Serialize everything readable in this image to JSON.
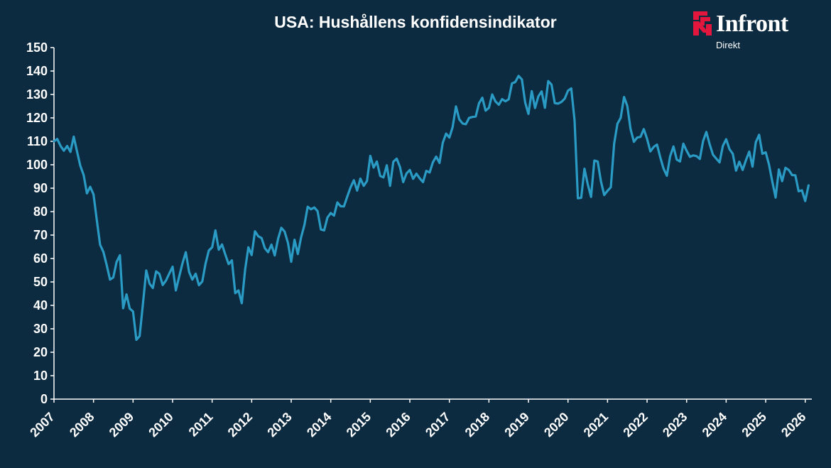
{
  "colors": {
    "background": "#0d2b40",
    "line": "#2a9bc4",
    "axis": "#ffffff",
    "brand": "#e3173e"
  },
  "logo": {
    "name": "Infront",
    "subtitle": "Direkt",
    "mark": "infront-mark-icon"
  },
  "chart_data": {
    "type": "line",
    "title": "USA: Hushållens konfidensindikator",
    "xlabel": "",
    "ylabel": "",
    "grid": false,
    "legend": "none",
    "ylim": [
      0,
      150
    ],
    "xlim": [
      "2007-01",
      "2026-03"
    ],
    "yticks": [
      "0",
      "10",
      "20",
      "30",
      "40",
      "50",
      "60",
      "70",
      "80",
      "90",
      "100",
      "110",
      "120",
      "130",
      "140",
      "150"
    ],
    "xticks": [
      "2007",
      "2008",
      "2009",
      "2010",
      "2011",
      "2012",
      "2013",
      "2014",
      "2015",
      "2016",
      "2017",
      "2018",
      "2019",
      "2020",
      "2021",
      "2022",
      "2023",
      "2024",
      "2025",
      "2026"
    ],
    "series": [
      {
        "points": [
          [
            "2007-01",
            110
          ],
          [
            "2007-02",
            111
          ],
          [
            "2007-03",
            108
          ],
          [
            "2007-04",
            106
          ],
          [
            "2007-05",
            108
          ],
          [
            "2007-06",
            105.5
          ],
          [
            "2007-07",
            112
          ],
          [
            "2007-08",
            105.6
          ],
          [
            "2007-09",
            99.5
          ],
          [
            "2007-10",
            95.6
          ],
          [
            "2007-11",
            87.8
          ],
          [
            "2007-12",
            90.6
          ],
          [
            "2008-01",
            87.3
          ],
          [
            "2008-02",
            76.4
          ],
          [
            "2008-03",
            65.9
          ],
          [
            "2008-04",
            62.8
          ],
          [
            "2008-05",
            57.2
          ],
          [
            "2008-06",
            51
          ],
          [
            "2008-07",
            51.9
          ],
          [
            "2008-08",
            58.5
          ],
          [
            "2008-09",
            61.4
          ],
          [
            "2008-10",
            38.8
          ],
          [
            "2008-11",
            44.7
          ],
          [
            "2008-12",
            38.6
          ],
          [
            "2009-01",
            37.4
          ],
          [
            "2009-02",
            25.3
          ],
          [
            "2009-03",
            26.9
          ],
          [
            "2009-04",
            40.8
          ],
          [
            "2009-05",
            54.9
          ],
          [
            "2009-06",
            49.3
          ],
          [
            "2009-07",
            47.4
          ],
          [
            "2009-08",
            54.5
          ],
          [
            "2009-09",
            53.4
          ],
          [
            "2009-10",
            48.7
          ],
          [
            "2009-11",
            50.6
          ],
          [
            "2009-12",
            53.6
          ],
          [
            "2010-01",
            56.5
          ],
          [
            "2010-02",
            46.4
          ],
          [
            "2010-03",
            52.3
          ],
          [
            "2010-04",
            57.9
          ],
          [
            "2010-05",
            62.7
          ],
          [
            "2010-06",
            54.3
          ],
          [
            "2010-07",
            51
          ],
          [
            "2010-08",
            53.5
          ],
          [
            "2010-09",
            48.6
          ],
          [
            "2010-10",
            50.2
          ],
          [
            "2010-11",
            57.8
          ],
          [
            "2010-12",
            63.4
          ],
          [
            "2011-01",
            64.8
          ],
          [
            "2011-02",
            72
          ],
          [
            "2011-03",
            63.8
          ],
          [
            "2011-04",
            66
          ],
          [
            "2011-05",
            61.7
          ],
          [
            "2011-06",
            57.6
          ],
          [
            "2011-07",
            59.2
          ],
          [
            "2011-08",
            45.2
          ],
          [
            "2011-09",
            46.4
          ],
          [
            "2011-10",
            40.9
          ],
          [
            "2011-11",
            55.2
          ],
          [
            "2011-12",
            64.8
          ],
          [
            "2012-01",
            61.5
          ],
          [
            "2012-02",
            71.6
          ],
          [
            "2012-03",
            69.5
          ],
          [
            "2012-04",
            68.7
          ],
          [
            "2012-05",
            64.4
          ],
          [
            "2012-06",
            62.7
          ],
          [
            "2012-07",
            65.9
          ],
          [
            "2012-08",
            61.3
          ],
          [
            "2012-09",
            68.4
          ],
          [
            "2012-10",
            73.1
          ],
          [
            "2012-11",
            71.5
          ],
          [
            "2012-12",
            66.7
          ],
          [
            "2013-01",
            58.6
          ],
          [
            "2013-02",
            68
          ],
          [
            "2013-03",
            61.9
          ],
          [
            "2013-04",
            69
          ],
          [
            "2013-05",
            74.3
          ],
          [
            "2013-06",
            82.1
          ],
          [
            "2013-07",
            81
          ],
          [
            "2013-08",
            81.8
          ],
          [
            "2013-09",
            80.2
          ],
          [
            "2013-10",
            72.4
          ],
          [
            "2013-11",
            72
          ],
          [
            "2013-12",
            77.5
          ],
          [
            "2014-01",
            79.4
          ],
          [
            "2014-02",
            78.3
          ],
          [
            "2014-03",
            83.9
          ],
          [
            "2014-04",
            82.3
          ],
          [
            "2014-05",
            82.2
          ],
          [
            "2014-06",
            86.4
          ],
          [
            "2014-07",
            90.3
          ],
          [
            "2014-08",
            93.4
          ],
          [
            "2014-09",
            89
          ],
          [
            "2014-10",
            94.1
          ],
          [
            "2014-11",
            91
          ],
          [
            "2014-12",
            93.1
          ],
          [
            "2015-01",
            103.8
          ],
          [
            "2015-02",
            98.8
          ],
          [
            "2015-03",
            101.4
          ],
          [
            "2015-04",
            95.2
          ],
          [
            "2015-05",
            94.6
          ],
          [
            "2015-06",
            99.8
          ],
          [
            "2015-07",
            91
          ],
          [
            "2015-08",
            101.3
          ],
          [
            "2015-09",
            102.6
          ],
          [
            "2015-10",
            99.1
          ],
          [
            "2015-11",
            92.6
          ],
          [
            "2015-12",
            96.3
          ],
          [
            "2016-01",
            97.8
          ],
          [
            "2016-02",
            94
          ],
          [
            "2016-03",
            96.2
          ],
          [
            "2016-04",
            94.2
          ],
          [
            "2016-05",
            92.6
          ],
          [
            "2016-06",
            97.4
          ],
          [
            "2016-07",
            96.7
          ],
          [
            "2016-08",
            101.1
          ],
          [
            "2016-09",
            103.5
          ],
          [
            "2016-10",
            100.8
          ],
          [
            "2016-11",
            109.4
          ],
          [
            "2016-12",
            113.3
          ],
          [
            "2017-01",
            111.6
          ],
          [
            "2017-02",
            116.1
          ],
          [
            "2017-03",
            124.9
          ],
          [
            "2017-04",
            119.4
          ],
          [
            "2017-05",
            117.6
          ],
          [
            "2017-06",
            117.3
          ],
          [
            "2017-07",
            120
          ],
          [
            "2017-08",
            120.4
          ],
          [
            "2017-09",
            120.6
          ],
          [
            "2017-10",
            126.2
          ],
          [
            "2017-11",
            128.6
          ],
          [
            "2017-12",
            123.1
          ],
          [
            "2018-01",
            124.3
          ],
          [
            "2018-02",
            130
          ],
          [
            "2018-03",
            127
          ],
          [
            "2018-04",
            125.6
          ],
          [
            "2018-05",
            128
          ],
          [
            "2018-06",
            127.1
          ],
          [
            "2018-07",
            127.9
          ],
          [
            "2018-08",
            134.7
          ],
          [
            "2018-09",
            135.3
          ],
          [
            "2018-10",
            137.9
          ],
          [
            "2018-11",
            136.4
          ],
          [
            "2018-12",
            126.6
          ],
          [
            "2019-01",
            121.7
          ],
          [
            "2019-02",
            131.4
          ],
          [
            "2019-03",
            124.2
          ],
          [
            "2019-04",
            129.2
          ],
          [
            "2019-05",
            131.3
          ],
          [
            "2019-06",
            124.3
          ],
          [
            "2019-07",
            135.7
          ],
          [
            "2019-08",
            134.2
          ],
          [
            "2019-09",
            126.3
          ],
          [
            "2019-10",
            126.1
          ],
          [
            "2019-11",
            126.8
          ],
          [
            "2019-12",
            128.2
          ],
          [
            "2020-01",
            131.6
          ],
          [
            "2020-02",
            132.6
          ],
          [
            "2020-03",
            118.8
          ],
          [
            "2020-04",
            85.7
          ],
          [
            "2020-05",
            85.9
          ],
          [
            "2020-06",
            98.3
          ],
          [
            "2020-07",
            91.7
          ],
          [
            "2020-08",
            86.3
          ],
          [
            "2020-09",
            101.8
          ],
          [
            "2020-10",
            101.4
          ],
          [
            "2020-11",
            92.9
          ],
          [
            "2020-12",
            87.1
          ],
          [
            "2021-01",
            88.9
          ],
          [
            "2021-02",
            90.4
          ],
          [
            "2021-03",
            109
          ],
          [
            "2021-04",
            117.5
          ],
          [
            "2021-05",
            120
          ],
          [
            "2021-06",
            128.9
          ],
          [
            "2021-07",
            125.1
          ],
          [
            "2021-08",
            115.2
          ],
          [
            "2021-09",
            109.8
          ],
          [
            "2021-10",
            111.6
          ],
          [
            "2021-11",
            111.9
          ],
          [
            "2021-12",
            115.2
          ],
          [
            "2022-01",
            111.1
          ],
          [
            "2022-02",
            105.7
          ],
          [
            "2022-03",
            107.6
          ],
          [
            "2022-04",
            108.6
          ],
          [
            "2022-05",
            103.2
          ],
          [
            "2022-06",
            98.4
          ],
          [
            "2022-07",
            95.3
          ],
          [
            "2022-08",
            103.6
          ],
          [
            "2022-09",
            107.8
          ],
          [
            "2022-10",
            102.2
          ],
          [
            "2022-11",
            101.4
          ],
          [
            "2022-12",
            109
          ],
          [
            "2023-01",
            106
          ],
          [
            "2023-02",
            103.4
          ],
          [
            "2023-03",
            104
          ],
          [
            "2023-04",
            103.7
          ],
          [
            "2023-05",
            102.5
          ],
          [
            "2023-06",
            110.1
          ],
          [
            "2023-07",
            114
          ],
          [
            "2023-08",
            108.7
          ],
          [
            "2023-09",
            104.3
          ],
          [
            "2023-10",
            102.6
          ],
          [
            "2023-11",
            101
          ],
          [
            "2023-12",
            108
          ],
          [
            "2024-01",
            110.9
          ],
          [
            "2024-02",
            106.7
          ],
          [
            "2024-03",
            104.7
          ],
          [
            "2024-04",
            97.5
          ],
          [
            "2024-05",
            101.3
          ],
          [
            "2024-06",
            97.8
          ],
          [
            "2024-07",
            101.9
          ],
          [
            "2024-08",
            105.6
          ],
          [
            "2024-09",
            99.2
          ],
          [
            "2024-10",
            109.6
          ],
          [
            "2024-11",
            112.8
          ],
          [
            "2024-12",
            104.7
          ],
          [
            "2025-01",
            105.3
          ],
          [
            "2025-02",
            100.1
          ],
          [
            "2025-03",
            92.9
          ],
          [
            "2025-04",
            86
          ],
          [
            "2025-05",
            98
          ],
          [
            "2025-06",
            93
          ],
          [
            "2025-07",
            98.7
          ],
          [
            "2025-08",
            97.8
          ],
          [
            "2025-09",
            95.6
          ],
          [
            "2025-10",
            95.5
          ],
          [
            "2025-11",
            88.7
          ],
          [
            "2025-12",
            89.1
          ],
          [
            "2026-01",
            84.5
          ],
          [
            "2026-02",
            91.2
          ]
        ]
      }
    ]
  }
}
